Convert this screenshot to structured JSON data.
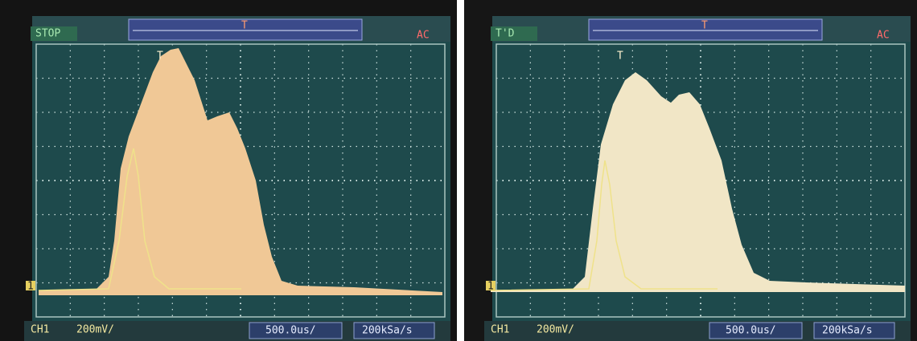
{
  "screens": [
    {
      "status": "STOP",
      "coupling": "AC",
      "trigger_marker": "T",
      "channel_marker": "1",
      "channel": "CH1",
      "volts_per_div": "200mV/",
      "time_per_div": "500.0us/",
      "sample_rate": "200kSa/s"
    },
    {
      "status": "T'D",
      "coupling": "AC",
      "trigger_marker": "T",
      "channel_marker": "1",
      "channel": "CH1",
      "volts_per_div": "200mV/",
      "time_per_div": "500.0us/",
      "sample_rate": "200kSa/s"
    }
  ]
}
